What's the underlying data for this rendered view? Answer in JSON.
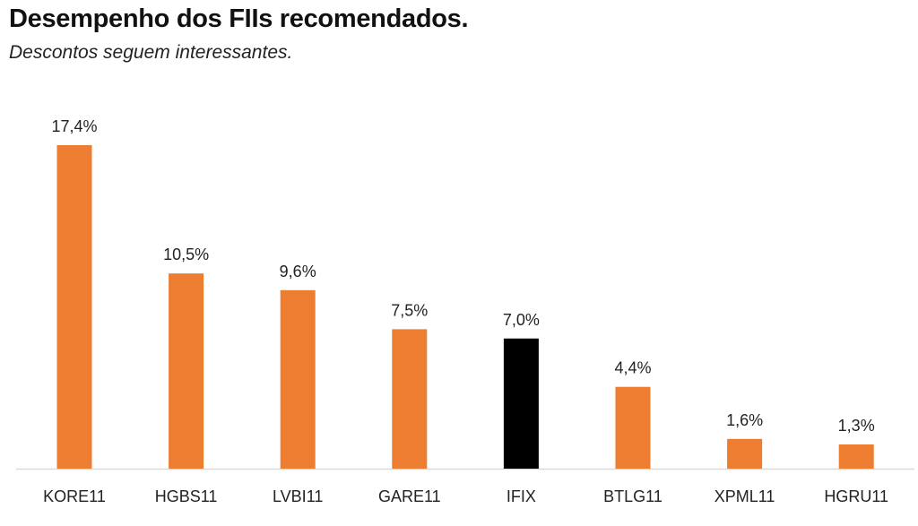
{
  "title": "Desempenho dos FIIs recomendados.",
  "subtitle": "Descontos seguem interessantes.",
  "colors": {
    "default_bar": "#ED7D31",
    "highlight_bar": "#000000",
    "axis": "#D9D9D9",
    "text": "#222222"
  },
  "chart_data": {
    "type": "bar",
    "categories": [
      "KORE11",
      "HGBS11",
      "LVBI11",
      "GARE11",
      "IFIX",
      "BTLG11",
      "XPML11",
      "HGRU11"
    ],
    "values": [
      17.4,
      10.5,
      9.6,
      7.5,
      7.0,
      4.4,
      1.6,
      1.3
    ],
    "data_labels": [
      "17,4%",
      "10,5%",
      "9,6%",
      "7,5%",
      "7,0%",
      "4,4%",
      "1,6%",
      "1,3%"
    ],
    "highlight": [
      "IFIX"
    ],
    "title": "Desempenho dos FIIs recomendados.",
    "subtitle": "Descontos seguem interessantes.",
    "ylim": [
      0,
      17.4
    ],
    "grid": false,
    "legend": "none"
  }
}
